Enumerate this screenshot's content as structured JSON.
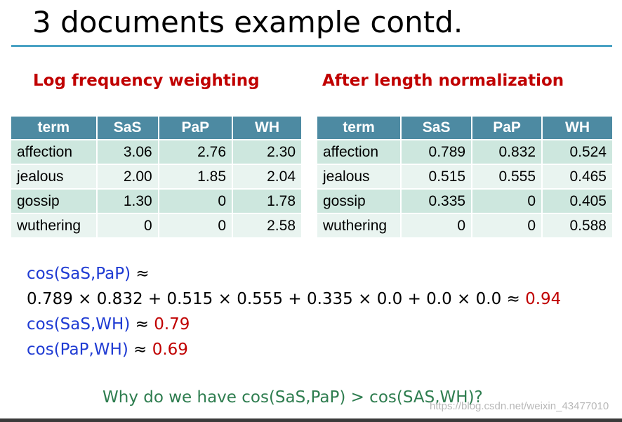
{
  "slide": {
    "title": "3 documents example contd.",
    "accent_color": "#4aa3c4"
  },
  "left_section": {
    "heading": "Log frequency weighting",
    "columns": [
      "term",
      "SaS",
      "PaP",
      "WH"
    ],
    "rows": [
      {
        "term": "affection",
        "SaS": "3.06",
        "PaP": "2.76",
        "WH": "2.30"
      },
      {
        "term": "jealous",
        "SaS": "2.00",
        "PaP": "1.85",
        "WH": "2.04"
      },
      {
        "term": "gossip",
        "SaS": "1.30",
        "PaP": "0",
        "WH": "1.78"
      },
      {
        "term": "wuthering",
        "SaS": "0",
        "PaP": "0",
        "WH": "2.58"
      }
    ]
  },
  "right_section": {
    "heading": "After length normalization",
    "columns": [
      "term",
      "SaS",
      "PaP",
      "WH"
    ],
    "rows": [
      {
        "term": "affection",
        "SaS": "0.789",
        "PaP": "0.832",
        "WH": "0.524"
      },
      {
        "term": "jealous",
        "SaS": "0.515",
        "PaP": "0.555",
        "WH": "0.465"
      },
      {
        "term": "gossip",
        "SaS": "0.335",
        "PaP": "0",
        "WH": "0.405"
      },
      {
        "term": "wuthering",
        "SaS": "0",
        "PaP": "0",
        "WH": "0.588"
      }
    ]
  },
  "formulas": {
    "line1_label": "cos(SaS,PaP)",
    "line1_approx": " ≈",
    "line2_expr": "0.789 × 0.832 + 0.515 × 0.555 + 0.335 × 0.0 + 0.0 × 0.0 ≈ ",
    "line2_result": "0.94",
    "line3_label": "cos(SaS,WH)",
    "line3_approx": " ≈ ",
    "line3_result": "0.79",
    "line4_label": "cos(PaP,WH)",
    "line4_approx": " ≈ ",
    "line4_result": "0.69"
  },
  "question": "Why do we have cos(SaS,PaP) > cos(SAS,WH)?",
  "watermark": "https://blog.csdn.net/weixin_43477010",
  "colors": {
    "header_red": "#c00000",
    "table_header": "#4d8aa2",
    "row_dark": "#cde7de",
    "row_light": "#e9f4f0",
    "formula_blue": "#1f3bd3",
    "question_green": "#2e7d4f"
  }
}
